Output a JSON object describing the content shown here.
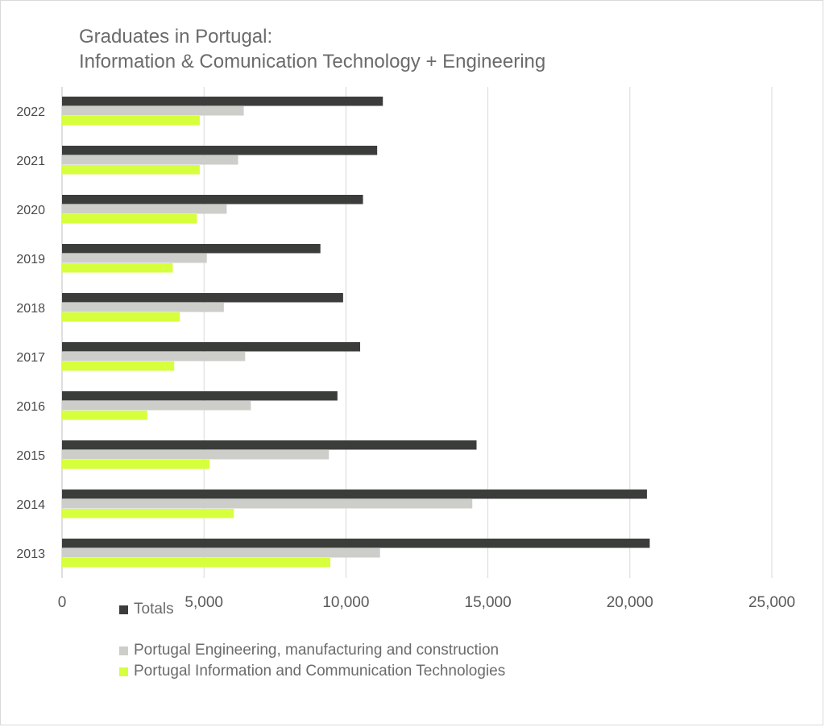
{
  "chart_data": {
    "type": "bar",
    "orientation": "horizontal",
    "title": [
      "Graduates in Portugal:",
      "Information & Comunication Technology + Engineering"
    ],
    "categories": [
      "2022",
      "2021",
      "2020",
      "2019",
      "2018",
      "2017",
      "2016",
      "2015",
      "2014",
      "2013"
    ],
    "series": [
      {
        "name": "Totals",
        "color": "#3b3d3b",
        "values": [
          11300,
          11100,
          10600,
          9100,
          9900,
          10500,
          9700,
          14600,
          20600,
          20700
        ]
      },
      {
        "name": "Portugal Engineering, manufacturing and construction",
        "color": "#cdcdca",
        "values": [
          6400,
          6200,
          5800,
          5100,
          5700,
          6450,
          6650,
          9400,
          14450,
          11200
        ]
      },
      {
        "name": "Portugal Information and Communication Technologies",
        "color": "#d6ff3c",
        "values": [
          4850,
          4850,
          4750,
          3900,
          4150,
          3950,
          3000,
          5200,
          6050,
          9450
        ]
      }
    ],
    "x_ticks": [
      "0",
      "5,000",
      "10,000",
      "15,000",
      "20,000",
      "25,000"
    ],
    "xlim": [
      0,
      25000
    ],
    "grid": true,
    "legend_position": "bottom-left"
  }
}
